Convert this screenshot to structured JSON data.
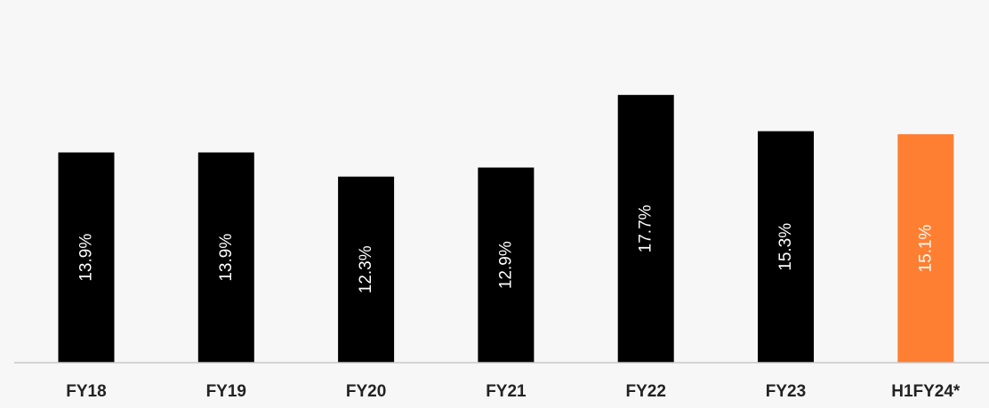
{
  "chart_data": {
    "type": "bar",
    "title": "",
    "xlabel": "",
    "ylabel": "",
    "categories": [
      "FY18",
      "FY19",
      "FY20",
      "FY21",
      "FY22",
      "FY23",
      "H1FY24*"
    ],
    "values": [
      13.9,
      13.9,
      12.3,
      12.9,
      17.7,
      15.3,
      15.1
    ],
    "data_labels": [
      "13.9%",
      "13.9%",
      "12.3%",
      "12.9%",
      "17.7%",
      "15.3%",
      "15.1%"
    ],
    "ylim": [
      0,
      22.8
    ],
    "grid": false,
    "legend": "none",
    "colors": {
      "bar": "#000000",
      "highlight_bar": "#ff7f32",
      "highlight_index": 6,
      "label_on_bar": "#ffffff",
      "axis": "#c8c8c8",
      "background": "#f7f7f7"
    }
  }
}
